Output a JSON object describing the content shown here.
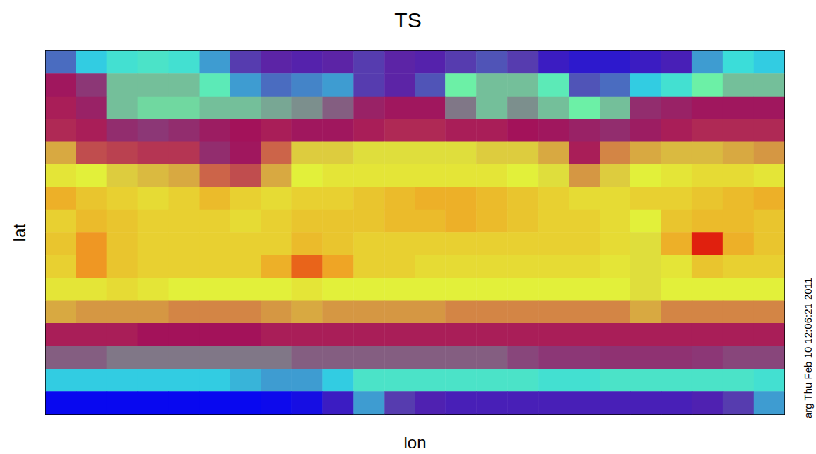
{
  "chart_data": {
    "type": "heatmap",
    "title": "TS",
    "x_label": "lon",
    "y_label": "lat",
    "annotation": "arg Thu Feb 10 12:06:21 2011",
    "x": [
      7.5,
      22.5,
      37.5,
      52.5,
      67.5,
      82.5,
      97.5,
      112.5,
      127.5,
      142.5,
      157.5,
      172.5,
      187.5,
      202.5,
      217.5,
      232.5,
      247.5,
      262.5,
      277.5,
      292.5,
      307.5,
      322.5,
      337.5,
      352.5
    ],
    "y": [
      84.375,
      73.125,
      61.875,
      50.625,
      39.375,
      28.125,
      16.875,
      5.625,
      -5.625,
      -16.875,
      -28.125,
      -39.375,
      -50.625,
      -61.875,
      -73.125,
      -84.375
    ],
    "values": [
      [
        248,
        252,
        255,
        256,
        255,
        250,
        246,
        245,
        244,
        245,
        246,
        245,
        244,
        246,
        247,
        246,
        240,
        238,
        238,
        240,
        242,
        250,
        254,
        252
      ],
      [
        274,
        268,
        262,
        262,
        262,
        258,
        250,
        248,
        249,
        250,
        246,
        245,
        247,
        260,
        262,
        262,
        258,
        247,
        248,
        252,
        255,
        260,
        262,
        262
      ],
      [
        276,
        272,
        262,
        261,
        261,
        262,
        262,
        263,
        264,
        266,
        272,
        274,
        274,
        265,
        262,
        264,
        262,
        260,
        262,
        270,
        272,
        274,
        274,
        274
      ],
      [
        277,
        276,
        270,
        268,
        270,
        273,
        275,
        276,
        274,
        274,
        276,
        277,
        277,
        276,
        276,
        275,
        274,
        272,
        270,
        273,
        276,
        277,
        277,
        277
      ],
      [
        286,
        280,
        279,
        278,
        278,
        270,
        274,
        282,
        288,
        288,
        289,
        289,
        289,
        289,
        288,
        288,
        286,
        276,
        284,
        286,
        287,
        287,
        286,
        285
      ],
      [
        291,
        290,
        288,
        287,
        286,
        282,
        280,
        286,
        290,
        291,
        291,
        291,
        291,
        291,
        291,
        290,
        289,
        285,
        288,
        290,
        291,
        292,
        292,
        291
      ],
      [
        296,
        294,
        293,
        292,
        293,
        295,
        293,
        292,
        293,
        293,
        294,
        295,
        296,
        296,
        295,
        294,
        293,
        292,
        292,
        293,
        293,
        294,
        295,
        296
      ],
      [
        293,
        295,
        294,
        293,
        293,
        293,
        292,
        293,
        294,
        294,
        294,
        295,
        295,
        296,
        295,
        294,
        293,
        293,
        292,
        290,
        294,
        295,
        295,
        294
      ],
      [
        294,
        298,
        294,
        293,
        293,
        293,
        293,
        293,
        295,
        294,
        293,
        293,
        293,
        293,
        293,
        293,
        293,
        293,
        292,
        289,
        296,
        305,
        296,
        294
      ],
      [
        293,
        298,
        294,
        293,
        293,
        293,
        293,
        296,
        301,
        297,
        293,
        293,
        292,
        292,
        292,
        292,
        292,
        292,
        291,
        289,
        291,
        294,
        293,
        293
      ],
      [
        291,
        291,
        292,
        291,
        290,
        290,
        290,
        290,
        291,
        290,
        290,
        290,
        290,
        290,
        290,
        290,
        290,
        290,
        290,
        289,
        290,
        290,
        290,
        290
      ],
      [
        286,
        285,
        285,
        285,
        284,
        284,
        284,
        285,
        286,
        285,
        285,
        285,
        285,
        284,
        284,
        284,
        284,
        284,
        284,
        286,
        284,
        284,
        284,
        284
      ],
      [
        276,
        276,
        276,
        275,
        275,
        275,
        275,
        276,
        276,
        276,
        276,
        276,
        276,
        276,
        276,
        276,
        276,
        276,
        276,
        276,
        276,
        276,
        276,
        276
      ],
      [
        266,
        266,
        265,
        265,
        265,
        265,
        265,
        265,
        266,
        266,
        266,
        266,
        266,
        266,
        266,
        267,
        268,
        268,
        269,
        269,
        269,
        268,
        267,
        267
      ],
      [
        252,
        252,
        252,
        252,
        252,
        252,
        251,
        250,
        250,
        252,
        256,
        256,
        256,
        256,
        256,
        256,
        255,
        255,
        256,
        256,
        256,
        256,
        256,
        255
      ],
      [
        230,
        230,
        230,
        230,
        230,
        230,
        230,
        231,
        233,
        240,
        250,
        246,
        243,
        242,
        242,
        242,
        242,
        242,
        242,
        242,
        242,
        243,
        246,
        250
      ]
    ],
    "zlim": [
      230,
      305
    ],
    "tick_labels": false,
    "grid": false
  }
}
